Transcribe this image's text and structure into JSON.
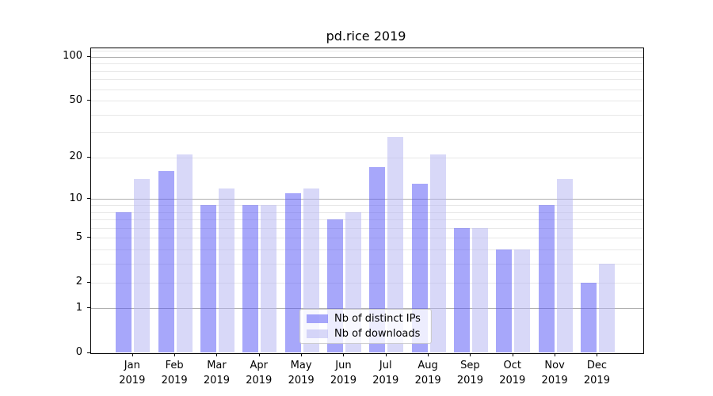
{
  "title": "pd.rice 2019",
  "chart_data": {
    "type": "bar",
    "title": "pd.rice 2019",
    "categories": [
      "Jan",
      "Feb",
      "Mar",
      "Apr",
      "May",
      "Jun",
      "Jul",
      "Aug",
      "Sep",
      "Oct",
      "Nov",
      "Dec"
    ],
    "category_year": "2019",
    "series": [
      {
        "name": "Nb of distinct IPs",
        "color": "rgba(79,79,245,0.5)",
        "values": [
          8,
          16,
          9,
          9,
          11,
          7,
          17,
          13,
          6,
          4,
          9,
          2
        ]
      },
      {
        "name": "Nb of downloads",
        "color": "rgba(177,177,241,0.5)",
        "values": [
          14,
          21,
          12,
          9,
          12,
          8,
          28,
          21,
          6,
          4,
          14,
          3
        ]
      }
    ],
    "xlabel": "",
    "ylabel": "",
    "yscale": "symlog_ln1p",
    "ylim": [
      0,
      115
    ],
    "y_tick_labels": [
      "0",
      "1",
      "2",
      "5",
      "10",
      "20",
      "50",
      "100"
    ],
    "y_tick_values": [
      0,
      1,
      2,
      5,
      10,
      20,
      50,
      100
    ],
    "grid": "horizontal",
    "grid_major_values": [
      1,
      10,
      100
    ],
    "grid_minor_values": [
      2,
      3,
      4,
      5,
      6,
      7,
      8,
      9,
      20,
      30,
      40,
      50,
      60,
      70,
      80,
      90,
      110
    ],
    "legend_position": "lower-center-inside",
    "legend_entries": [
      "Nb of distinct IPs",
      "Nb of downloads"
    ]
  },
  "colors": {
    "background": "#ffffff",
    "spine": "#000000",
    "grid_major": "#b0b0b0",
    "grid_minor": "#e8e8e8",
    "bar_ips": "rgba(79,79,245,0.5)",
    "bar_downloads": "rgba(177,177,241,0.5)",
    "legend_border": "#cccccc"
  }
}
